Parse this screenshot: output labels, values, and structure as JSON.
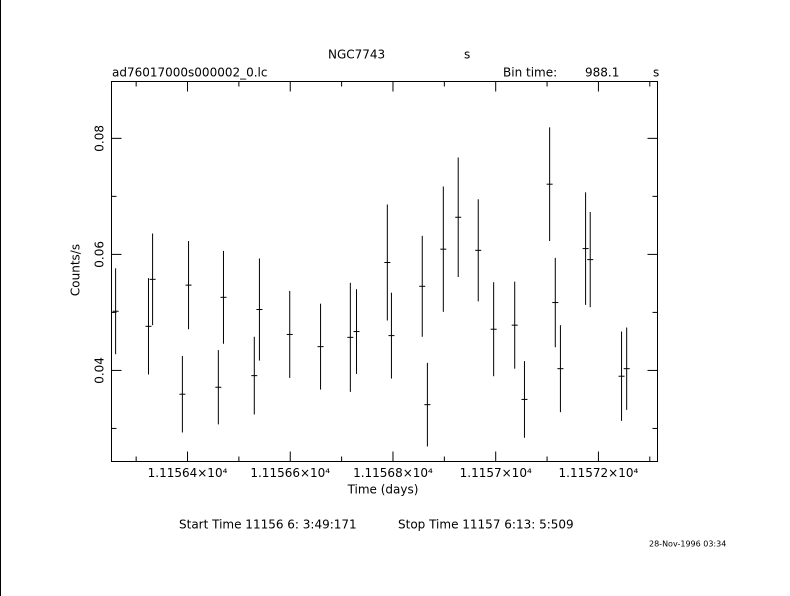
{
  "chart_data": {
    "type": "scatter",
    "title": "NGC7743",
    "annotations": [
      "s",
      "ad76017000s000002_0.lc",
      "Bin time:",
      "988.1",
      "s",
      "Start Time 11156  6: 3:49:171",
      "Stop Time 11157  6:13: 5:509",
      "28-Nov-1996 03:34"
    ],
    "xlabel": "Time (days)",
    "ylabel": "Counts/s",
    "xlim": [
      11156.252,
      11157.315
    ],
    "ylim": [
      0.0243,
      0.0898
    ],
    "xticks": [
      {
        "value": 11156.4,
        "label": "1.11564×10⁴"
      },
      {
        "value": 11156.6,
        "label": "1.11566×10⁴"
      },
      {
        "value": 11156.8,
        "label": "1.11568×10⁴"
      },
      {
        "value": 11157.0,
        "label": "1.1157×10⁴"
      },
      {
        "value": 11157.2,
        "label": "1.11572×10⁴"
      }
    ],
    "xminor": [
      11156.3,
      11156.5,
      11156.7,
      11156.9,
      11157.1,
      11157.3
    ],
    "yticks": [
      0.04,
      0.06,
      0.08
    ],
    "yminor": [
      0.03,
      0.05,
      0.07
    ],
    "series": [
      {
        "color": "#000000",
        "x": [
          11156.26,
          11156.324,
          11156.332,
          11156.39,
          11156.402,
          11156.46,
          11156.47,
          11156.53,
          11156.54,
          11156.599,
          11156.659,
          11156.717,
          11156.729,
          11156.789,
          11156.797,
          11156.857,
          11156.867,
          11156.898,
          11156.927,
          11156.966,
          11156.996,
          11157.037,
          11157.056,
          11157.105,
          11157.116,
          11157.126,
          11157.175,
          11157.184,
          11157.245,
          11157.255
        ],
        "values": [
          0.0502,
          0.0476,
          0.0557,
          0.0359,
          0.0547,
          0.0371,
          0.0526,
          0.0391,
          0.0505,
          0.0462,
          0.0441,
          0.0457,
          0.0467,
          0.0586,
          0.046,
          0.0545,
          0.0341,
          0.0609,
          0.0664,
          0.0607,
          0.0471,
          0.0478,
          0.035,
          0.0721,
          0.0517,
          0.0403,
          0.061,
          0.0591,
          0.039,
          0.0403
        ],
        "errors": [
          0.0074,
          0.0083,
          0.0079,
          0.0066,
          0.0076,
          0.0064,
          0.008,
          0.0067,
          0.0088,
          0.0075,
          0.0074,
          0.0094,
          0.0073,
          0.01,
          0.0074,
          0.0087,
          0.0072,
          0.0108,
          0.0103,
          0.0088,
          0.0081,
          0.0075,
          0.0066,
          0.0098,
          0.0077,
          0.0075,
          0.0097,
          0.0082,
          0.0077,
          0.0071
        ]
      }
    ]
  }
}
